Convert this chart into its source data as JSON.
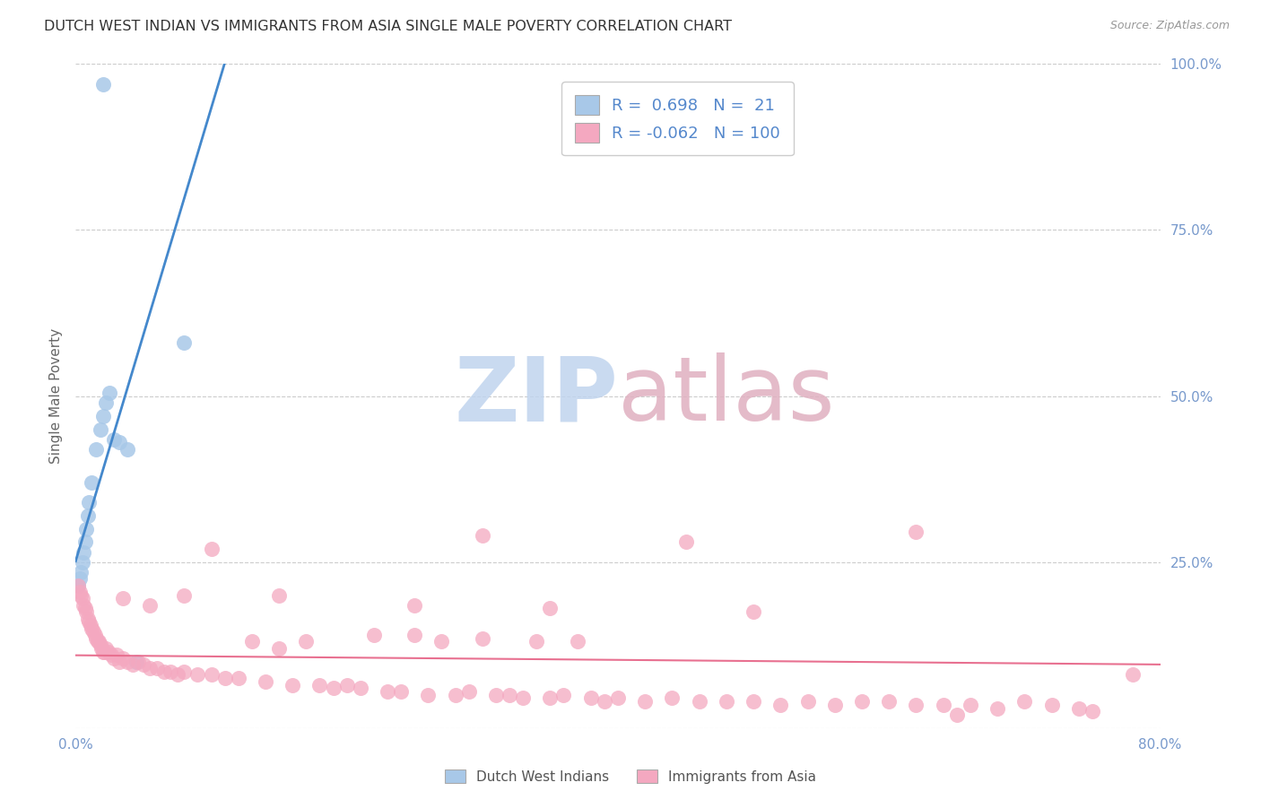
{
  "title": "DUTCH WEST INDIAN VS IMMIGRANTS FROM ASIA SINGLE MALE POVERTY CORRELATION CHART",
  "source": "Source: ZipAtlas.com",
  "ylabel": "Single Male Poverty",
  "xlim": [
    0.0,
    0.8
  ],
  "ylim": [
    0.0,
    1.0
  ],
  "blue_R": 0.698,
  "blue_N": 21,
  "pink_R": -0.062,
  "pink_N": 100,
  "blue_color": "#a8c8e8",
  "pink_color": "#f4a8c0",
  "blue_line_color": "#4488cc",
  "pink_line_color": "#e87090",
  "background_color": "#ffffff",
  "grid_color": "#cccccc",
  "axis_label_color": "#7799cc",
  "title_color": "#333333",
  "source_color": "#999999",
  "legend_text_color": "#5588cc",
  "watermark_zip_color": "#c0d4ee",
  "watermark_atlas_color": "#e0b0c0",
  "blue_x": [
    0.002,
    0.003,
    0.004,
    0.005,
    0.006,
    0.007,
    0.008,
    0.009,
    0.01,
    0.012,
    0.015,
    0.018,
    0.02,
    0.022,
    0.025,
    0.028,
    0.032,
    0.038,
    0.045,
    0.08,
    0.02
  ],
  "blue_y": [
    0.215,
    0.225,
    0.235,
    0.25,
    0.265,
    0.28,
    0.3,
    0.32,
    0.34,
    0.37,
    0.42,
    0.45,
    0.47,
    0.49,
    0.505,
    0.435,
    0.43,
    0.42,
    0.1,
    0.58,
    0.97
  ],
  "pink_x": [
    0.002,
    0.003,
    0.004,
    0.005,
    0.006,
    0.007,
    0.008,
    0.009,
    0.01,
    0.011,
    0.012,
    0.013,
    0.014,
    0.015,
    0.016,
    0.017,
    0.018,
    0.019,
    0.02,
    0.021,
    0.022,
    0.024,
    0.026,
    0.028,
    0.03,
    0.032,
    0.035,
    0.038,
    0.042,
    0.046,
    0.05,
    0.055,
    0.06,
    0.065,
    0.07,
    0.075,
    0.08,
    0.09,
    0.1,
    0.11,
    0.12,
    0.13,
    0.14,
    0.15,
    0.16,
    0.17,
    0.18,
    0.19,
    0.2,
    0.21,
    0.22,
    0.23,
    0.24,
    0.25,
    0.26,
    0.27,
    0.28,
    0.29,
    0.3,
    0.31,
    0.32,
    0.33,
    0.34,
    0.35,
    0.36,
    0.37,
    0.38,
    0.39,
    0.4,
    0.42,
    0.44,
    0.46,
    0.48,
    0.5,
    0.52,
    0.54,
    0.56,
    0.58,
    0.6,
    0.62,
    0.64,
    0.66,
    0.68,
    0.7,
    0.72,
    0.74,
    0.1,
    0.3,
    0.45,
    0.62,
    0.035,
    0.055,
    0.08,
    0.15,
    0.25,
    0.35,
    0.5,
    0.65,
    0.75,
    0.78
  ],
  "pink_y": [
    0.215,
    0.205,
    0.2,
    0.195,
    0.185,
    0.18,
    0.175,
    0.165,
    0.16,
    0.155,
    0.15,
    0.145,
    0.14,
    0.135,
    0.13,
    0.13,
    0.125,
    0.12,
    0.115,
    0.115,
    0.12,
    0.115,
    0.11,
    0.105,
    0.11,
    0.1,
    0.105,
    0.1,
    0.095,
    0.1,
    0.095,
    0.09,
    0.09,
    0.085,
    0.085,
    0.08,
    0.085,
    0.08,
    0.08,
    0.075,
    0.075,
    0.13,
    0.07,
    0.12,
    0.065,
    0.13,
    0.065,
    0.06,
    0.065,
    0.06,
    0.14,
    0.055,
    0.055,
    0.14,
    0.05,
    0.13,
    0.05,
    0.055,
    0.135,
    0.05,
    0.05,
    0.045,
    0.13,
    0.045,
    0.05,
    0.13,
    0.045,
    0.04,
    0.045,
    0.04,
    0.045,
    0.04,
    0.04,
    0.04,
    0.035,
    0.04,
    0.035,
    0.04,
    0.04,
    0.035,
    0.035,
    0.035,
    0.03,
    0.04,
    0.035,
    0.03,
    0.27,
    0.29,
    0.28,
    0.295,
    0.195,
    0.185,
    0.2,
    0.2,
    0.185,
    0.18,
    0.175,
    0.02,
    0.025,
    0.08
  ]
}
